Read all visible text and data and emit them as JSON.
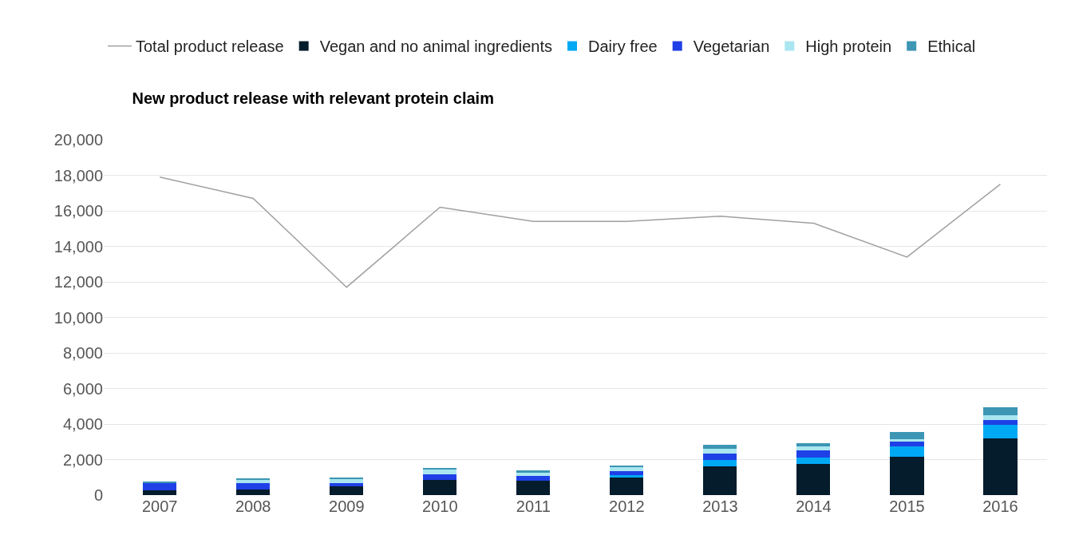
{
  "chart_data": {
    "type": "bar",
    "stacked": true,
    "title": "New product release with relevant protein claim",
    "categories": [
      "2007",
      "2008",
      "2009",
      "2010",
      "2011",
      "2012",
      "2013",
      "2014",
      "2015",
      "2016"
    ],
    "series": [
      {
        "name": "Total product release",
        "type": "line",
        "color": "#a0a0a0",
        "values": [
          17900,
          16700,
          11700,
          16200,
          15400,
          15400,
          15700,
          15300,
          13400,
          17500
        ]
      },
      {
        "name": "Vegan and no animal ingredients",
        "color": "#051c2c",
        "values": [
          290,
          320,
          500,
          870,
          830,
          990,
          1630,
          1760,
          2180,
          3200
        ]
      },
      {
        "name": "Dairy free",
        "color": "#00a9f4",
        "values": [
          0,
          0,
          0,
          0,
          0,
          130,
          370,
          350,
          550,
          770
        ]
      },
      {
        "name": "Vegetarian",
        "color": "#1f40e6",
        "values": [
          390,
          350,
          180,
          320,
          240,
          240,
          320,
          400,
          290,
          270
        ]
      },
      {
        "name": "High protein",
        "color": "#aae6f0",
        "values": [
          0,
          200,
          250,
          240,
          180,
          210,
          290,
          210,
          110,
          240
        ]
      },
      {
        "name": "Ethical",
        "color": "#3c96b4",
        "values": [
          100,
          80,
          70,
          100,
          150,
          110,
          230,
          210,
          430,
          480
        ]
      }
    ],
    "ylim": [
      0,
      20000
    ],
    "yticks": [
      {
        "value": 0,
        "label": "0"
      },
      {
        "value": 2000,
        "label": "2,000"
      },
      {
        "value": 4000,
        "label": "4,000"
      },
      {
        "value": 6000,
        "label": "6,000"
      },
      {
        "value": 8000,
        "label": "8,000"
      },
      {
        "value": 10000,
        "label": "10,000"
      },
      {
        "value": 12000,
        "label": "12,000"
      },
      {
        "value": 14000,
        "label": "14,000"
      },
      {
        "value": 16000,
        "label": "16,000"
      },
      {
        "value": 18000,
        "label": "18,000"
      },
      {
        "value": 20000,
        "label": "20,000"
      }
    ],
    "grid": "y",
    "legend": "top left"
  }
}
